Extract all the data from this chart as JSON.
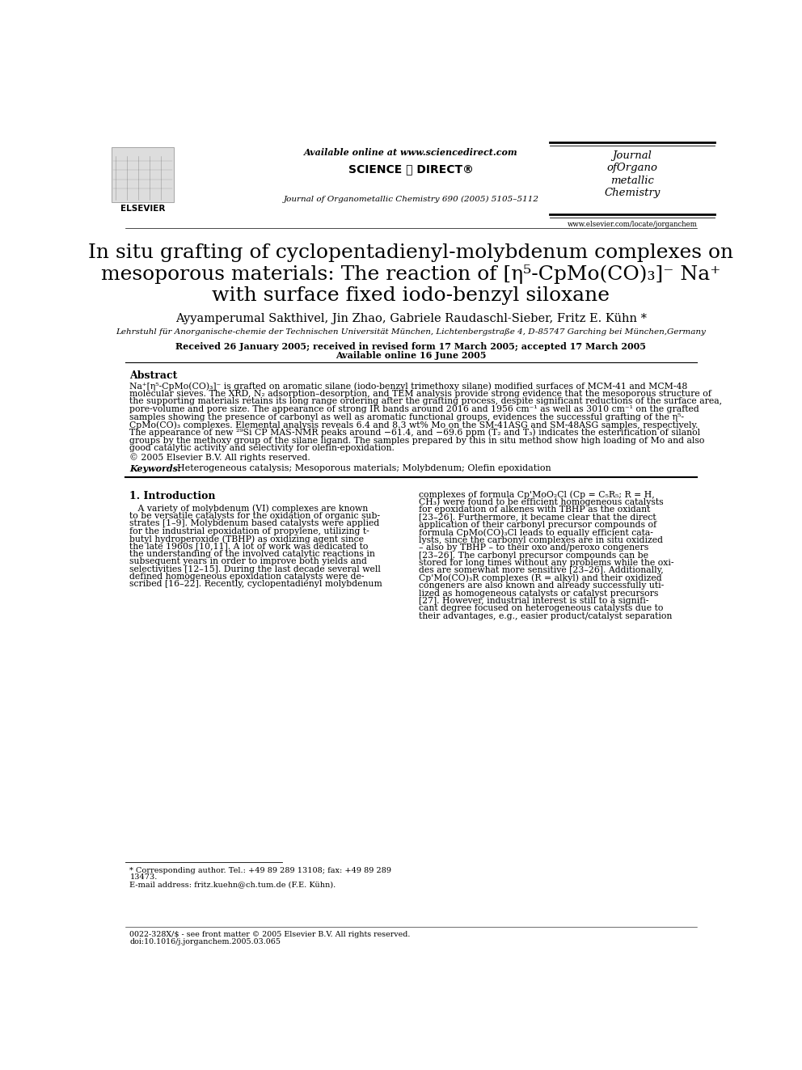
{
  "bg_color": "#ffffff",
  "header_available_online": "Available online at www.sciencedirect.com",
  "journal_info": "Journal of Organometallic Chemistry 690 (2005) 5105–5112",
  "journal_name_lines": [
    "Journal",
    "ofOrgano",
    "metallic",
    "Chemistry"
  ],
  "journal_url": "www.elsevier.com/locate/jorganchem",
  "elsevier_text": "ELSEVIER",
  "title_line1": "In situ grafting of cyclopentadienyl-molybdenum complexes on",
  "title_line2": "mesoporous materials: The reaction of [η⁵-CpMo(CO)₃]⁻ Na⁺",
  "title_line3": "with surface fixed iodo-benzyl siloxane",
  "authors": "Ayyamperumal Sakthivel, Jin Zhao, Gabriele Raudaschl-Sieber, Fritz E. Kühn *",
  "affiliation": "Lehrstuhl für Anorganische-chemie der Technischen Universität München, Lichtenbergstraße 4, D-85747 Garching bei München,Germany",
  "received": "Received 26 January 2005; received in revised form 17 March 2005; accepted 17 March 2005",
  "available": "Available online 16 June 2005",
  "abstract_label": "Abstract",
  "abstract_lines": [
    "Na⁺[η⁵-CpMo(CO)₃]⁻ is grafted on aromatic silane (iodo-benzyl trimethoxy silane) modified surfaces of MCM-41 and MCM-48",
    "molecular sieves. The XRD, N₂ adsorption–desorption, and TEM analysis provide strong evidence that the mesoporous structure of",
    "the supporting materials retains its long range ordering after the grafting process, despite significant reductions of the surface area,",
    "pore-volume and pore size. The appearance of strong IR bands around 2016 and 1956 cm⁻¹ as well as 3010 cm⁻¹ on the grafted",
    "samples showing the presence of carbonyl as well as aromatic functional groups, evidences the successful grafting of the η⁵-",
    "CpMo(CO)₃ complexes. Elemental analysis reveals 6.4 and 8.3 wt% Mo on the SM-41ASG and SM-48ASG samples, respectively.",
    "The appearance of new ²⁹Si CP MAS-NMR peaks around −61.4, and −69.6 ppm (T₂ and T₃) indicates the esterification of silanol",
    "groups by the methoxy group of the silane ligand. The samples prepared by this in situ method show high loading of Mo and also",
    "good catalytic activity and selectivity for olefin-epoxidation."
  ],
  "copyright": "© 2005 Elsevier B.V. All rights reserved.",
  "keywords_label": "Keywords:",
  "keywords_text": "Heterogeneous catalysis; Mesoporous materials; Molybdenum; Olefin epoxidation",
  "section1_title": "1. Introduction",
  "intro_col1_lines": [
    "   A variety of molybdenum (VI) complexes are known",
    "to be versatile catalysts for the oxidation of organic sub-",
    "strates [1–9]. Molybdenum based catalysts were applied",
    "for the industrial epoxidation of propylene, utilizing t-",
    "butyl hydroperoxide (TBHP) as oxidizing agent since",
    "the late 1960s [10,11]. A lot of work was dedicated to",
    "the understanding of the involved catalytic reactions in",
    "subsequent years in order to improve both yields and",
    "selectivities [12–15]. During the last decade several well",
    "defined homogeneous epoxidation catalysts were de-",
    "scribed [16–22]. Recently, cyclopentadienyl molybdenum"
  ],
  "intro_col2_lines": [
    "complexes of formula Cp'MoO₂Cl (Cp = C₅R₅; R = H,",
    "CH₃) were found to be efficient homogeneous catalysts",
    "for epoxidation of alkenes with TBHP as the oxidant",
    "[23–26]. Furthermore, it became clear that the direct",
    "application of their carbonyl precursor compounds of",
    "formula CpMo(CO)₃Cl leads to equally efficient cata-",
    "lysts, since the carbonyl complexes are in situ oxidized",
    "– also by TBHP – to their oxo and/peroxo congeners",
    "[23–26]. The carbonyl precursor compounds can be",
    "stored for long times without any problems while the oxi-",
    "des are somewhat more sensitive [23–26]. Additionally,",
    "Cp'Mo(CO)₃R complexes (R = alkyl) and their oxidized",
    "congeners are also known and already successfully uti-",
    "lized as homogeneous catalysts or catalyst precursors",
    "[27]. However, industrial interest is still to a signifi-",
    "cant degree focused on heterogeneous catalysts due to",
    "their advantages, e.g., easier product/catalyst separation"
  ],
  "footnote_star": "* Corresponding author. Tel.: +49 89 289 13108; fax: +49 89 289",
  "footnote_star2": "13473.",
  "footnote_email": "E-mail address: fritz.kuehn@ch.tum.de (F.E. Kühn).",
  "footer_issn": "0022-328X/$ - see front matter © 2005 Elsevier B.V. All rights reserved.",
  "footer_doi": "doi:10.1016/j.jorganchem.2005.03.065"
}
